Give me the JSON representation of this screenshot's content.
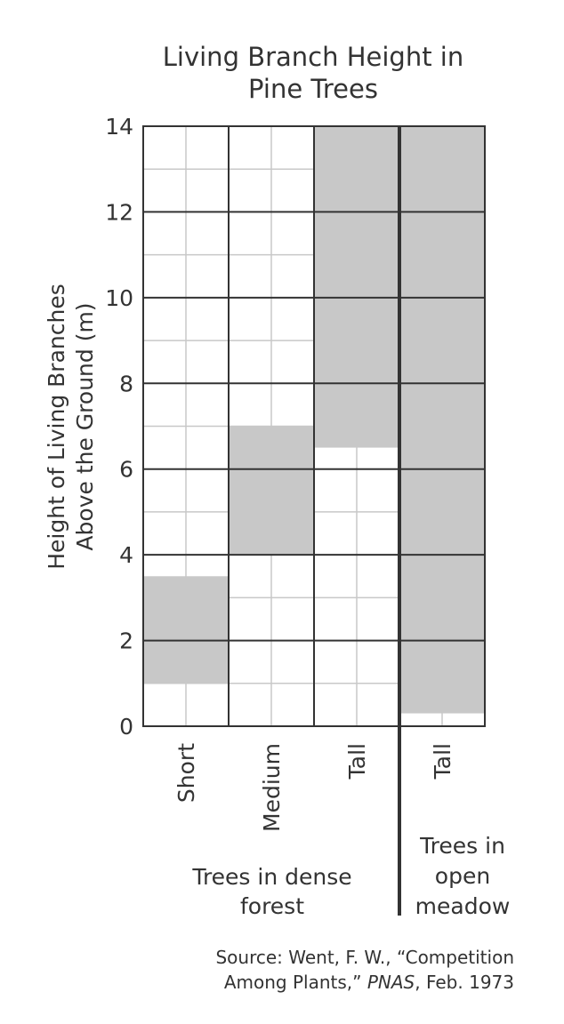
{
  "chart_data": {
    "type": "bar",
    "title": [
      "Living Branch Height in",
      "Pine Trees"
    ],
    "ylabel": [
      "Height of Living Branches",
      "Above the Ground (m)"
    ],
    "ylim": [
      0,
      14
    ],
    "yticks": [
      "0",
      "2",
      "4",
      "6",
      "8",
      "10",
      "12",
      "14"
    ],
    "categories": [
      "Short",
      "Medium",
      "Tall",
      "Tall"
    ],
    "ranges": [
      [
        1,
        3.5
      ],
      [
        4,
        7
      ],
      [
        6.5,
        14
      ],
      [
        0.3,
        14
      ]
    ],
    "groups": [
      {
        "label": [
          "Trees in dense",
          "forest"
        ],
        "categories": [
          0,
          1,
          2
        ]
      },
      {
        "label": [
          "Trees in",
          "open",
          "meadow"
        ],
        "categories": [
          3
        ]
      }
    ],
    "grid": true,
    "colors": {
      "bar": "#c8c8c8",
      "grid_major": "#333333",
      "grid_minor": "#c8c8c8",
      "text": "#333333"
    }
  },
  "source": {
    "line1": "Source: Went, F. W., “Competition",
    "line2_prefix": "Among Plants,” ",
    "line2_italic": "PNAS",
    "line2_suffix": ", Feb. 1973"
  }
}
